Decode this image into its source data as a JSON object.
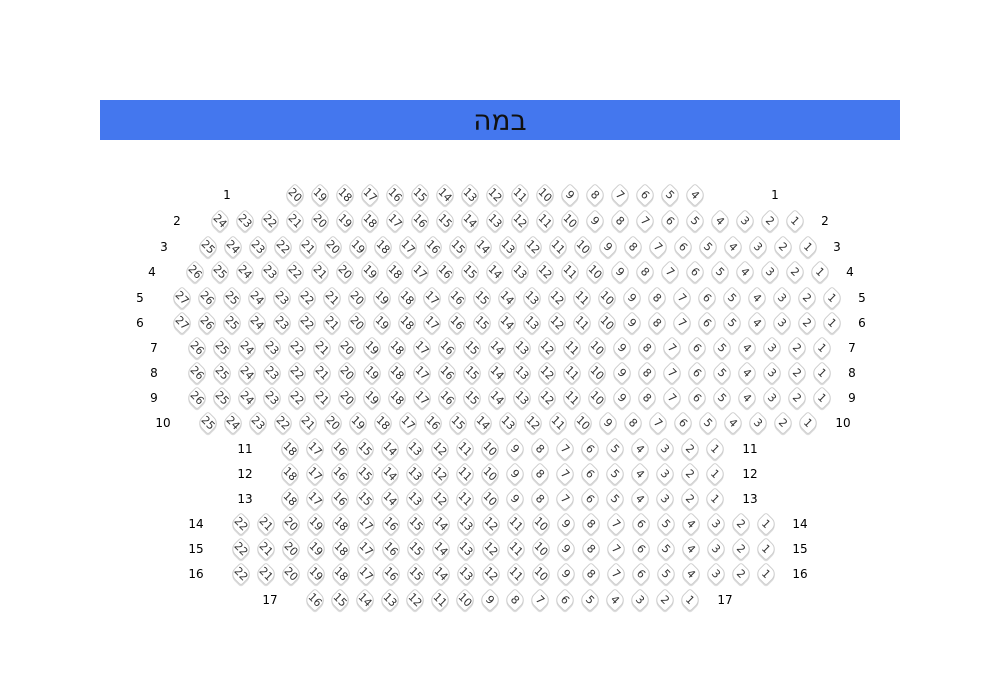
{
  "stage": {
    "label": "במה",
    "color": "#4477ee"
  },
  "rows": [
    {
      "row": "1",
      "from": 20,
      "to": 4
    },
    {
      "row": "2",
      "from": 24,
      "to": 1
    },
    {
      "row": "3",
      "from": 25,
      "to": 1
    },
    {
      "row": "4",
      "from": 26,
      "to": 1
    },
    {
      "row": "5",
      "from": 27,
      "to": 1
    },
    {
      "row": "6",
      "from": 27,
      "to": 1
    },
    {
      "row": "7",
      "from": 26,
      "to": 1
    },
    {
      "row": "8",
      "from": 26,
      "to": 1
    },
    {
      "row": "9",
      "from": 26,
      "to": 1
    },
    {
      "row": "10",
      "from": 25,
      "to": 1
    },
    {
      "row": "11",
      "from": 18,
      "to": 1
    },
    {
      "row": "12",
      "from": 18,
      "to": 1
    },
    {
      "row": "13",
      "from": 18,
      "to": 1
    },
    {
      "row": "14",
      "from": 22,
      "to": 1
    },
    {
      "row": "15",
      "from": 22,
      "to": 1
    },
    {
      "row": "16",
      "from": 22,
      "to": 1
    },
    {
      "row": "17",
      "from": 16,
      "to": 1
    }
  ]
}
